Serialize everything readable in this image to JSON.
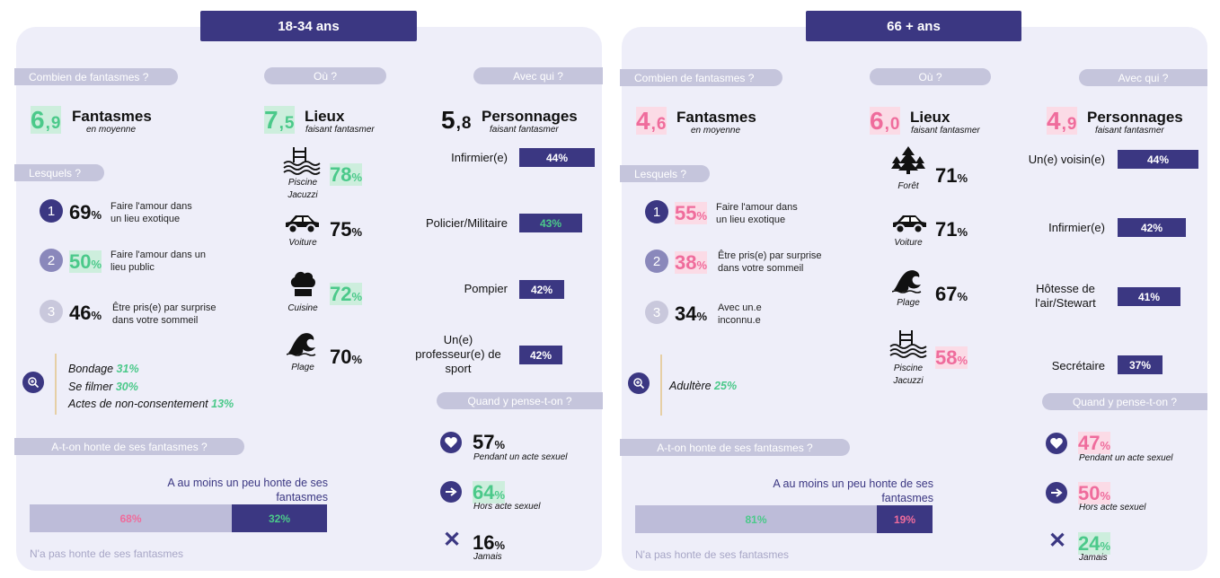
{
  "left": {
    "title": "18-34 ans",
    "combien": {
      "header": "Combien de fantasmes ?",
      "int": "6",
      "dec": ",9",
      "label": "Fantasmes",
      "sub": "en moyenne"
    },
    "ou": {
      "header": "Où ?",
      "int": "7",
      "dec": ",5",
      "label": "Lieux",
      "sub": "faisant fantasmer"
    },
    "avec": {
      "header": "Avec qui ?",
      "int": "5",
      "dec": ",8",
      "label": "Personnages",
      "sub": "faisant fantasmer"
    },
    "lesquels": {
      "header": "Lesquels ?",
      "items": [
        {
          "n": "1",
          "pct": "69",
          "desc1": "Faire l'amour dans",
          "desc2": "un lieu exotique"
        },
        {
          "n": "2",
          "pct": "50",
          "desc1": "Faire l'amour dans un",
          "desc2": "lieu public"
        },
        {
          "n": "3",
          "pct": "46",
          "desc1": "Être pris(e) par surprise",
          "desc2": "dans votre sommeil"
        }
      ],
      "extras": [
        {
          "label": "Bondage",
          "pct": "31%"
        },
        {
          "label": "Se filmer",
          "pct": "30%"
        },
        {
          "label": "Actes de non-consentement",
          "pct": "13%"
        }
      ]
    },
    "lieux": [
      {
        "name": "Piscine",
        "name2": "Jacuzzi",
        "pct": "78",
        "icon": "pool-icon"
      },
      {
        "name": "Voiture",
        "name2": "",
        "pct": "75",
        "icon": "car-icon"
      },
      {
        "name": "Cuisine",
        "name2": "",
        "pct": "72",
        "icon": "chef-hat-icon"
      },
      {
        "name": "Plage",
        "name2": "",
        "pct": "70",
        "icon": "wave-icon"
      }
    ],
    "personnages": [
      {
        "name": "Infirmier(e)",
        "pct": "44%"
      },
      {
        "name": "Policier/Militaire",
        "pct": "43%"
      },
      {
        "name": "Pompier",
        "pct": "42%"
      },
      {
        "name": "Un(e) professeur(e) de sport",
        "pct": "42%"
      }
    ],
    "honte": {
      "header": "A-t-on honte de ses fantasmes ?",
      "label_top": "A au moins un peu honte de ses fantasmes",
      "no": "68%",
      "yes": "32%",
      "label_bottom": "N'a pas honte de ses fantasmes",
      "yes_frac": 0.32
    },
    "quand": {
      "header": "Quand y pense-t-on ?",
      "items": [
        {
          "pct": "57",
          "label": "Pendant un acte sexuel",
          "icon": "heart-icon"
        },
        {
          "pct": "64",
          "label": "Hors acte sexuel",
          "icon": "arrow-right-icon"
        },
        {
          "pct": "16",
          "label": "Jamais",
          "icon": "cross-icon"
        }
      ]
    }
  },
  "right": {
    "title": "66 + ans",
    "combien": {
      "header": "Combien de fantasmes ?",
      "int": "4",
      "dec": ",6",
      "label": "Fantasmes",
      "sub": "en moyenne"
    },
    "ou": {
      "header": "Où ?",
      "int": "6",
      "dec": ",0",
      "label": "Lieux",
      "sub": "faisant fantasmer"
    },
    "avec": {
      "header": "Avec qui ?",
      "int": "4",
      "dec": ",9",
      "label": "Personnages",
      "sub": "faisant fantasmer"
    },
    "lesquels": {
      "header": "Lesquels ?",
      "items": [
        {
          "n": "1",
          "pct": "55",
          "desc1": "Faire l'amour dans",
          "desc2": "un lieu exotique"
        },
        {
          "n": "2",
          "pct": "38",
          "desc1": "Être pris(e) par surprise",
          "desc2": "dans votre sommeil"
        },
        {
          "n": "3",
          "pct": "34",
          "desc1": "Avec un.e",
          "desc2": "inconnu.e"
        }
      ],
      "extras": [
        {
          "label": "Adultère",
          "pct": "25%"
        }
      ]
    },
    "lieux": [
      {
        "name": "Forêt",
        "name2": "",
        "pct": "71",
        "icon": "trees-icon"
      },
      {
        "name": "Voiture",
        "name2": "",
        "pct": "71",
        "icon": "car-icon"
      },
      {
        "name": "Plage",
        "name2": "",
        "pct": "67",
        "icon": "wave-icon"
      },
      {
        "name": "Piscine",
        "name2": "Jacuzzi",
        "pct": "58",
        "icon": "pool-icon"
      }
    ],
    "personnages": [
      {
        "name": "Un(e) voisin(e)",
        "pct": "44%"
      },
      {
        "name": "Infirmier(e)",
        "pct": "42%"
      },
      {
        "name": "Hôtesse de l'air/Stewart",
        "pct": "41%"
      },
      {
        "name": "Secrétaire",
        "pct": "37%"
      }
    ],
    "honte": {
      "header": "A-t-on honte de ses fantasmes ?",
      "label_top": "A au moins un peu honte de ses fantasmes",
      "no": "81%",
      "yes": "19%",
      "label_bottom": "N'a pas honte de ses fantasmes",
      "yes_frac": 0.19
    },
    "quand": {
      "header": "Quand y pense-t-on ?",
      "items": [
        {
          "pct": "47",
          "label": "Pendant un acte sexuel",
          "icon": "heart-icon"
        },
        {
          "pct": "50",
          "label": "Hors acte sexuel",
          "icon": "arrow-right-icon"
        },
        {
          "pct": "24",
          "label": "Jamais",
          "icon": "cross-icon"
        }
      ]
    }
  },
  "colors": {
    "navy": "#3b3782",
    "green": "#4bc98a",
    "pink": "#ef6c9c",
    "panel": "#eeeef9",
    "pill": "#c5c5dc",
    "bar_light": "#bdbcd9"
  }
}
